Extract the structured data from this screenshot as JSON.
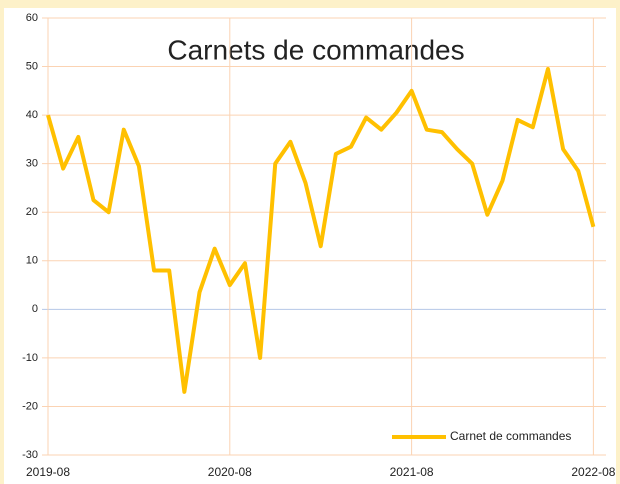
{
  "chart_data": {
    "type": "line",
    "title": "Carnets de commandes",
    "x": [
      "2019-08",
      "2019-09",
      "2019-10",
      "2019-11",
      "2019-12",
      "2020-01",
      "2020-02",
      "2020-03",
      "2020-04",
      "2020-05",
      "2020-06",
      "2020-07",
      "2020-08",
      "2020-09",
      "2020-10",
      "2020-11",
      "2020-12",
      "2021-01",
      "2021-02",
      "2021-03",
      "2021-04",
      "2021-05",
      "2021-06",
      "2021-07",
      "2021-08",
      "2021-09",
      "2021-10",
      "2021-11",
      "2021-12",
      "2022-01",
      "2022-02",
      "2022-03",
      "2022-04",
      "2022-05",
      "2022-06",
      "2022-07",
      "2022-08"
    ],
    "series": [
      {
        "name": "Carnet de commandes",
        "color": "#ffc000",
        "values": [
          40,
          29,
          35.5,
          22.5,
          20,
          37,
          29.5,
          8,
          8,
          -17,
          3.5,
          12.5,
          5,
          9.5,
          -10,
          30,
          34.5,
          26,
          13,
          32,
          33.5,
          39.5,
          37,
          40.5,
          45,
          37,
          36.5,
          33,
          30,
          19.5,
          26.5,
          39,
          37.5,
          49.5,
          33,
          28.5,
          17
        ]
      }
    ],
    "xticks": [
      "2019-08",
      "2020-08",
      "2021-08",
      "2022-08"
    ],
    "ylim": [
      -30,
      60
    ],
    "yticks": [
      -30,
      -20,
      -10,
      0,
      10,
      20,
      30,
      40,
      50,
      60
    ],
    "grid": true,
    "legend": "bottom-right"
  }
}
